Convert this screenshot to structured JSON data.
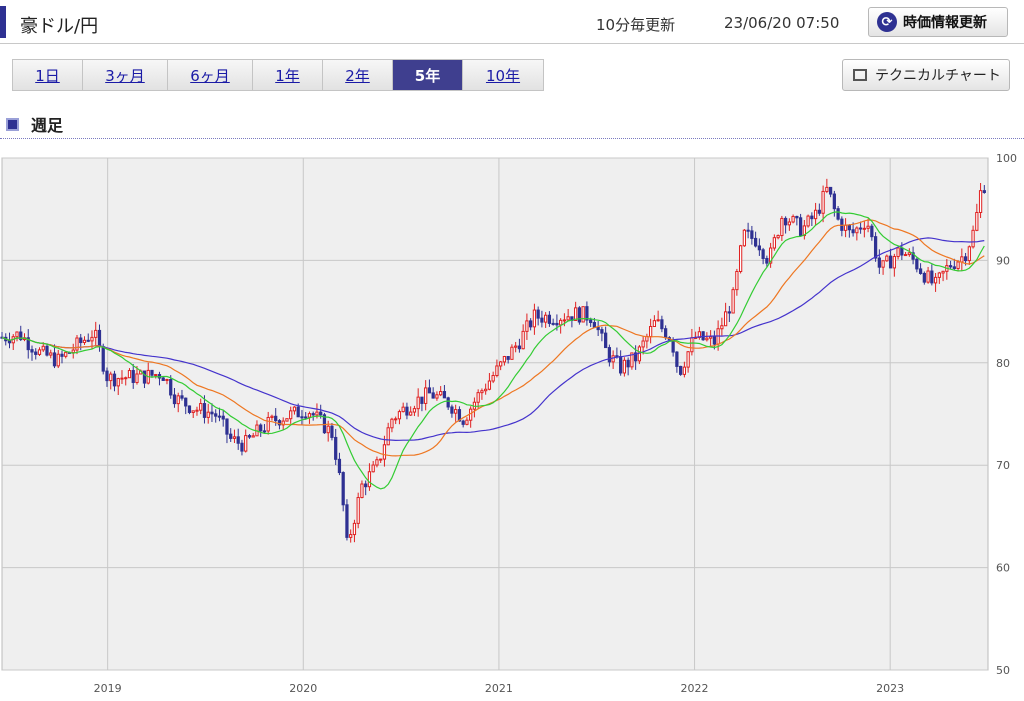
{
  "header": {
    "title": "豪ドル/円",
    "update_freq": "10分毎更新",
    "timestamp": "23/06/20 07:50",
    "refresh_label": "時価情報更新"
  },
  "tabs": [
    {
      "label": "1日",
      "active": false
    },
    {
      "label": "3ヶ月",
      "active": false
    },
    {
      "label": "6ヶ月",
      "active": false
    },
    {
      "label": "1年",
      "active": false
    },
    {
      "label": "2年",
      "active": false
    },
    {
      "label": "5年",
      "active": true
    },
    {
      "label": "10年",
      "active": false
    }
  ],
  "technical_button": "テクニカルチャート",
  "section_title": "週足",
  "colors": {
    "accent": "#2e3192",
    "up_candle": "#e02020",
    "down_candle": "#2e3192",
    "ma_short": "#33cc33",
    "ma_mid": "#ee7722",
    "ma_long": "#4433cc",
    "plot_bg": "#efefef",
    "grid": "#c8c8c8"
  },
  "chart_data": {
    "type": "candlestick",
    "timeframe": "weekly",
    "ylim": [
      50,
      100
    ],
    "yticks": [
      50,
      60,
      70,
      80,
      90,
      100
    ],
    "xlim": [
      2018.46,
      2023.5
    ],
    "xticks": [
      {
        "label": "2019",
        "x": 2019.0
      },
      {
        "label": "2020",
        "x": 2020.0
      },
      {
        "label": "2021",
        "x": 2021.0
      },
      {
        "label": "2022",
        "x": 2022.0
      },
      {
        "label": "2023",
        "x": 2023.0
      }
    ],
    "grid": true,
    "price_anchors": [
      [
        2018.46,
        82.5
      ],
      [
        2018.55,
        82.8
      ],
      [
        2018.65,
        81.0
      ],
      [
        2018.75,
        80.2
      ],
      [
        2018.85,
        81.8
      ],
      [
        2018.93,
        83.0
      ],
      [
        2019.0,
        78.5
      ],
      [
        2019.1,
        78.6
      ],
      [
        2019.2,
        78.7
      ],
      [
        2019.28,
        79.0
      ],
      [
        2019.35,
        76.5
      ],
      [
        2019.45,
        75.5
      ],
      [
        2019.55,
        75.0
      ],
      [
        2019.63,
        72.5
      ],
      [
        2019.7,
        72.0
      ],
      [
        2019.78,
        73.5
      ],
      [
        2019.86,
        74.5
      ],
      [
        2019.95,
        75.0
      ],
      [
        2020.02,
        75.5
      ],
      [
        2020.1,
        74.0
      ],
      [
        2020.15,
        73.0
      ],
      [
        2020.2,
        67.0
      ],
      [
        2020.22,
        62.0
      ],
      [
        2020.25,
        64.0
      ],
      [
        2020.3,
        68.0
      ],
      [
        2020.38,
        70.0
      ],
      [
        2020.45,
        74.5
      ],
      [
        2020.55,
        76.0
      ],
      [
        2020.65,
        77.0
      ],
      [
        2020.75,
        76.0
      ],
      [
        2020.82,
        74.5
      ],
      [
        2020.9,
        77.0
      ],
      [
        2021.0,
        79.5
      ],
      [
        2021.1,
        82.0
      ],
      [
        2021.18,
        84.5
      ],
      [
        2021.3,
        84.5
      ],
      [
        2021.4,
        84.8
      ],
      [
        2021.48,
        84.5
      ],
      [
        2021.55,
        81.0
      ],
      [
        2021.62,
        79.5
      ],
      [
        2021.7,
        80.5
      ],
      [
        2021.8,
        84.0
      ],
      [
        2021.88,
        82.5
      ],
      [
        2021.92,
        79.0
      ],
      [
        2022.0,
        82.5
      ],
      [
        2022.1,
        82.0
      ],
      [
        2022.2,
        86.5
      ],
      [
        2022.25,
        92.5
      ],
      [
        2022.32,
        92.0
      ],
      [
        2022.38,
        90.0
      ],
      [
        2022.45,
        94.5
      ],
      [
        2022.55,
        93.0
      ],
      [
        2022.62,
        94.5
      ],
      [
        2022.68,
        97.0
      ],
      [
        2022.73,
        94.0
      ],
      [
        2022.8,
        92.5
      ],
      [
        2022.88,
        94.0
      ],
      [
        2022.95,
        89.0
      ],
      [
        2023.0,
        90.0
      ],
      [
        2023.05,
        91.0
      ],
      [
        2023.12,
        90.0
      ],
      [
        2023.18,
        88.5
      ],
      [
        2023.23,
        87.5
      ],
      [
        2023.3,
        89.5
      ],
      [
        2023.38,
        90.5
      ],
      [
        2023.43,
        93.0
      ],
      [
        2023.47,
        97.5
      ],
      [
        2023.5,
        97.2
      ]
    ]
  }
}
